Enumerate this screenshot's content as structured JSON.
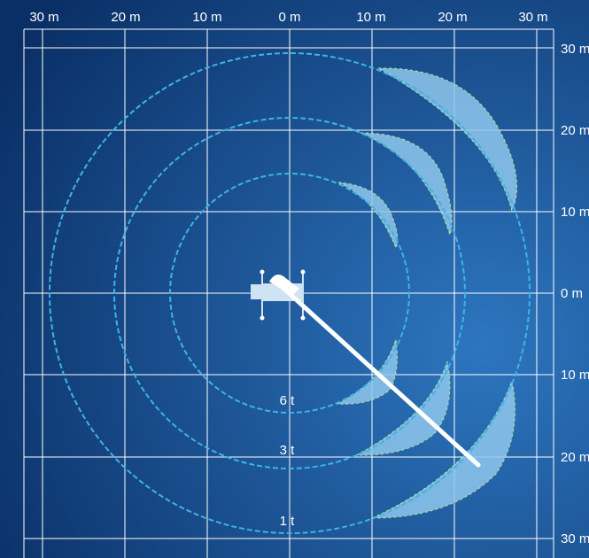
{
  "top_axis": [
    "30 m",
    "20 m",
    "10 m",
    "0 m",
    "10 m",
    "20 m",
    "30 m"
  ],
  "right_axis": [
    "30 m",
    "20 m",
    "10 m",
    "0 m",
    "10 m",
    "20 m",
    "30 m"
  ],
  "rings": [
    {
      "label": "6 t",
      "radius_m": 14.5
    },
    {
      "label": "3 t",
      "radius_m": 21.5
    },
    {
      "label": "1 t",
      "radius_m": 29.5
    }
  ],
  "colors": {
    "background_dark": "#0a2f66",
    "background_light": "#2d76bf",
    "grid": "#ffffff",
    "ring": "#3fb3e6",
    "lobe_fill": "#8ec7ec",
    "lobe_edge": "#b8e58a",
    "boom": "#ffffff",
    "crane": "#cfe3f3"
  },
  "icons": {
    "crane": "crane-top-view-icon"
  }
}
